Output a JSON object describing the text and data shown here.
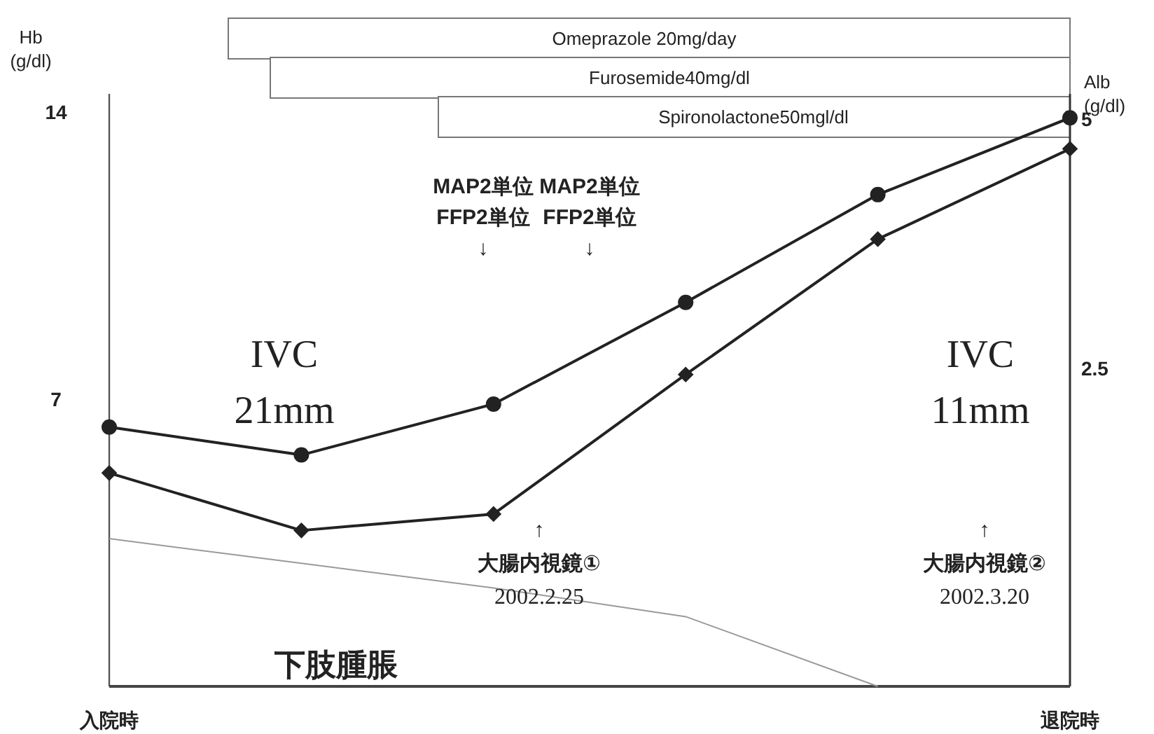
{
  "chart_data": {
    "type": "line",
    "ylabel": "Hb\n(g/dl)",
    "y2label": "Alb\n(g/dl)",
    "categories": [
      "入院時",
      null,
      null,
      null,
      null,
      "退院時"
    ],
    "ylim": [
      0,
      14.44
    ],
    "yticks": [
      7,
      14
    ],
    "y2lim": [
      -0.7,
      5.24
    ],
    "y2ticks": [
      2.5,
      5
    ],
    "series": [
      {
        "axis": "y2",
        "color": "#222222",
        "marker": "circle",
        "values": [
          1.9,
          1.62,
          2.13,
          3.15,
          4.23,
          5.0
        ]
      },
      {
        "axis": "y",
        "color": "#222222",
        "marker": "diamond",
        "values": [
          5.2,
          3.8,
          4.2,
          7.6,
          10.9,
          13.1
        ]
      },
      {
        "axis": "y",
        "color": "#9a9a9a",
        "marker": "none",
        "values": [
          3.6,
          3.0,
          2.4,
          1.7,
          0,
          null
        ]
      }
    ],
    "annotations": [
      "Omeprazole 20mg/day",
      "Furosemide40mg/dl",
      "Spironolactone50mgl/dl",
      "MAP2単位\nFFP2単位\n↓",
      "MAP2単位\nFFP2単位\n↓",
      "↑\n大腸内視鏡①\n2002.2.25",
      "↑\n大腸内視鏡②\n2002.3.20",
      "IVC\n21mm",
      "IVC\n11mm",
      "下肢腫脹"
    ]
  }
}
